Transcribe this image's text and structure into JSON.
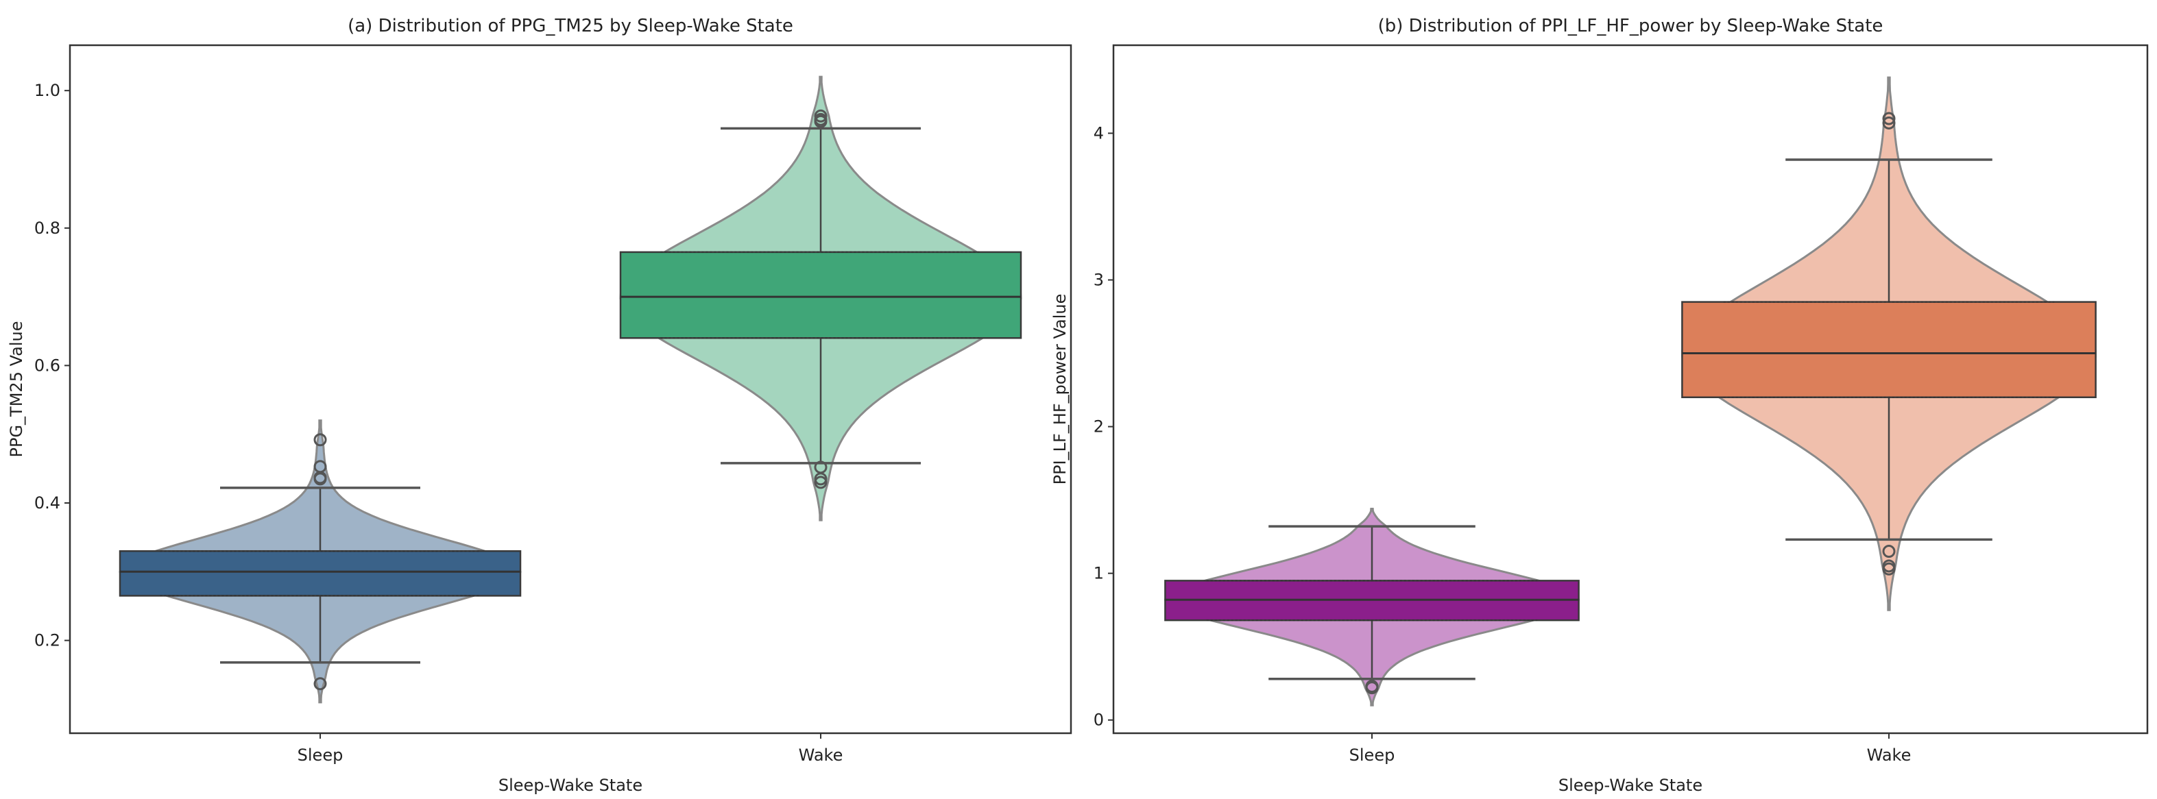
{
  "chart_data": [
    {
      "type": "violin+box",
      "title": "(a) Distribution of PPG_TM25 by Sleep-Wake State",
      "xlabel": "Sleep-Wake State",
      "ylabel": "PPG_TM25 Value",
      "ylim": [
        0.065,
        1.066
      ],
      "yticks": [
        0.2,
        0.4,
        0.6,
        0.8,
        1.0
      ],
      "ytick_labels": [
        "0.2",
        "0.4",
        "0.6",
        "0.8",
        "1.0"
      ],
      "categories": [
        "Sleep",
        "Wake"
      ],
      "grid": false,
      "groups": [
        {
          "name": "Sleep",
          "box_color": "#3a6289",
          "violin_color": "#9aafc4",
          "q1": 0.265,
          "median": 0.3,
          "q3": 0.33,
          "whisker_low": 0.168,
          "whisker_high": 0.422,
          "violin_min": 0.11,
          "violin_max": 0.52,
          "outliers": [
            0.492,
            0.453,
            0.437,
            0.435,
            0.137
          ]
        },
        {
          "name": "Wake",
          "box_color": "#40a678",
          "violin_color": "#9fd3bb",
          "q1": 0.64,
          "median": 0.7,
          "q3": 0.765,
          "whisker_low": 0.458,
          "whisker_high": 0.945,
          "violin_min": 0.375,
          "violin_max": 1.02,
          "outliers": [
            0.963,
            0.958,
            0.955,
            0.452,
            0.435,
            0.43
          ]
        }
      ]
    },
    {
      "type": "violin+box",
      "title": "(b) Distribution of PPI_LF_HF_power by Sleep-Wake State",
      "xlabel": "Sleep-Wake State",
      "ylabel": "PPI_LF_HF_power Value",
      "ylim": [
        -0.09,
        4.6
      ],
      "yticks": [
        0,
        1,
        2,
        3,
        4
      ],
      "ytick_labels": [
        "0",
        "1",
        "2",
        "3",
        "4"
      ],
      "categories": [
        "Sleep",
        "Wake"
      ],
      "grid": false,
      "groups": [
        {
          "name": "Sleep",
          "box_color": "#8b1f8b",
          "violin_color": "#c88dc8",
          "q1": 0.68,
          "median": 0.82,
          "q3": 0.95,
          "whisker_low": 0.28,
          "whisker_high": 1.32,
          "violin_min": 0.1,
          "violin_max": 1.44,
          "outliers": [
            0.23,
            0.22
          ]
        },
        {
          "name": "Wake",
          "box_color": "#dc7f5a",
          "violin_color": "#efbca8",
          "q1": 2.2,
          "median": 2.5,
          "q3": 2.85,
          "whisker_low": 1.23,
          "whisker_high": 3.82,
          "violin_min": 0.75,
          "violin_max": 4.38,
          "outliers": [
            4.1,
            4.07,
            1.15,
            1.05,
            1.03
          ]
        }
      ]
    }
  ]
}
